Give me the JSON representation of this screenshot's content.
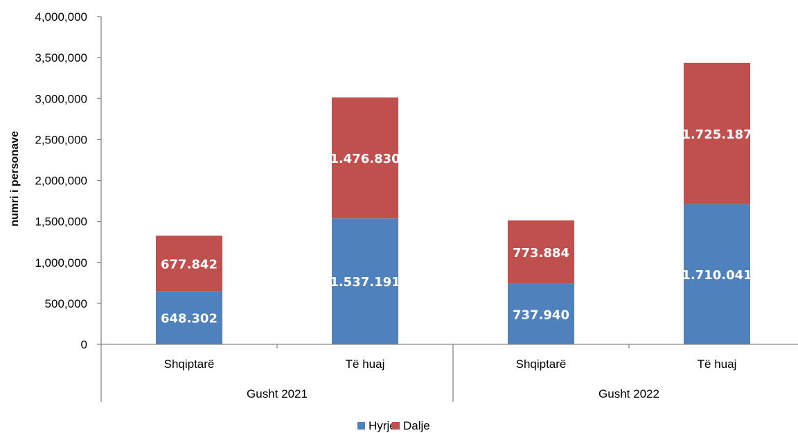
{
  "chart_data": {
    "type": "bar",
    "stacked": true,
    "ylabel": "numri i personave",
    "ylim": [
      0,
      4000000
    ],
    "yticks": [
      0,
      500000,
      1000000,
      1500000,
      2000000,
      2500000,
      3000000,
      3500000,
      4000000
    ],
    "ytick_labels": [
      "0",
      "500,000",
      "1,000,000",
      "1,500,000",
      "2,000,000",
      "2,500,000",
      "3,000,000",
      "3,500,000",
      "4,000,000"
    ],
    "categories": [
      "Shqiptarë",
      "Të huaj",
      "Shqiptarë",
      "Të huaj"
    ],
    "groups": [
      {
        "label": "Gusht 2021",
        "categories": [
          "Shqiptarë",
          "Të huaj"
        ]
      },
      {
        "label": "Gusht 2022",
        "categories": [
          "Shqiptarë",
          "Të huaj"
        ]
      }
    ],
    "series": [
      {
        "name": "Hyrje",
        "color": "#4f81bd",
        "values": [
          648302,
          1537191,
          737940,
          1710041
        ],
        "labels": [
          "648.302",
          "1.537.191",
          "737.940",
          "1.710.041"
        ]
      },
      {
        "name": "Dalje",
        "color": "#c0504d",
        "values": [
          677842,
          1476830,
          773884,
          1725187
        ],
        "labels": [
          "677.842",
          "1.476.830",
          "773.884",
          "1.725.187"
        ]
      }
    ],
    "grid": false,
    "legend_position": "bottom"
  }
}
